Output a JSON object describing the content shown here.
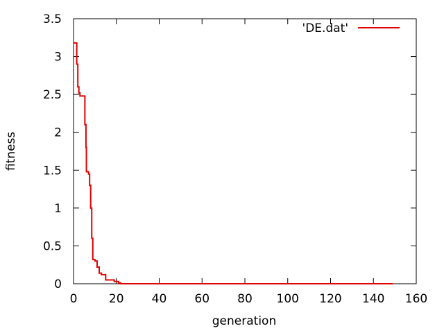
{
  "chart_data": {
    "type": "line",
    "title": "",
    "xlabel": "generation",
    "ylabel": "fitness",
    "xlim": [
      0,
      160
    ],
    "ylim": [
      0,
      3.5
    ],
    "x_ticks": [
      0,
      20,
      40,
      60,
      80,
      100,
      120,
      140,
      160
    ],
    "y_ticks": [
      0,
      0.5,
      1,
      1.5,
      2,
      2.5,
      3,
      3.5
    ],
    "x_tick_labels": [
      "0",
      "20",
      "40",
      "60",
      "80",
      "100",
      "120",
      "140",
      "160"
    ],
    "y_tick_labels": [
      "0",
      "0.5",
      "1",
      "1.5",
      "2",
      "2.5",
      "3",
      "3.5"
    ],
    "grid": false,
    "legend_position": "top-right",
    "series": [
      {
        "name": "'DE.dat'",
        "color": "#e00000",
        "step": true,
        "points": [
          [
            0,
            3.18
          ],
          [
            1,
            3.18
          ],
          [
            1.5,
            2.9
          ],
          [
            2,
            2.6
          ],
          [
            2.5,
            2.52
          ],
          [
            3,
            2.48
          ],
          [
            5,
            2.48
          ],
          [
            5.3,
            2.1
          ],
          [
            5.8,
            1.8
          ],
          [
            6,
            1.48
          ],
          [
            7,
            1.45
          ],
          [
            7.5,
            1.3
          ],
          [
            8,
            1.0
          ],
          [
            8.5,
            0.6
          ],
          [
            9,
            0.32
          ],
          [
            10,
            0.3
          ],
          [
            11,
            0.22
          ],
          [
            12,
            0.14
          ],
          [
            13,
            0.12
          ],
          [
            14,
            0.12
          ],
          [
            15,
            0.05
          ],
          [
            18,
            0.05
          ],
          [
            19,
            0.03
          ],
          [
            21,
            0.01
          ],
          [
            22,
            0.0
          ],
          [
            149,
            0.0
          ]
        ]
      }
    ]
  }
}
